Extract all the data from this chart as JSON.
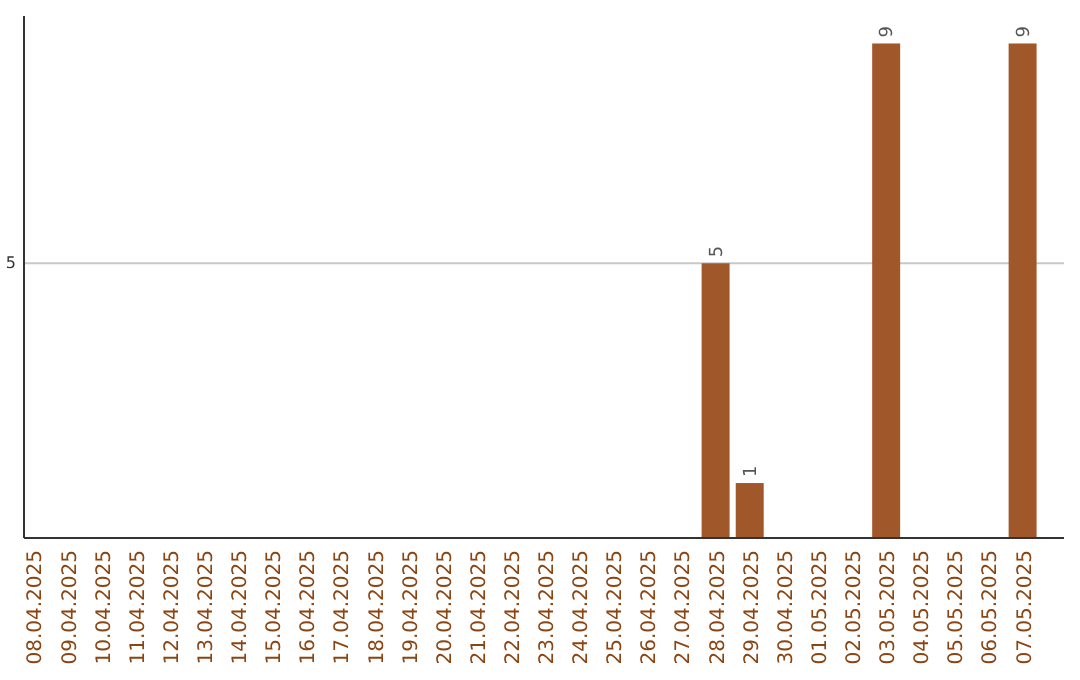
{
  "chart_data": {
    "type": "bar",
    "categories": [
      "08.04.2025",
      "09.04.2025",
      "10.04.2025",
      "11.04.2025",
      "12.04.2025",
      "13.04.2025",
      "14.04.2025",
      "15.04.2025",
      "16.04.2025",
      "17.04.2025",
      "18.04.2025",
      "19.04.2025",
      "20.04.2025",
      "21.04.2025",
      "22.04.2025",
      "23.04.2025",
      "24.04.2025",
      "25.04.2025",
      "26.04.2025",
      "27.04.2025",
      "28.04.2025",
      "29.04.2025",
      "30.04.2025",
      "01.05.2025",
      "02.05.2025",
      "03.05.2025",
      "04.05.2025",
      "05.05.2025",
      "06.05.2025",
      "07.05.2025"
    ],
    "values": [
      null,
      null,
      null,
      null,
      null,
      null,
      null,
      null,
      null,
      null,
      null,
      null,
      null,
      null,
      null,
      null,
      null,
      null,
      null,
      null,
      5,
      1,
      null,
      null,
      null,
      9,
      null,
      null,
      null,
      9
    ],
    "data_labels": true,
    "color": "#a0582a",
    "ylim": [
      0,
      9.5
    ],
    "yticks": [
      5
    ],
    "grid": "y"
  }
}
